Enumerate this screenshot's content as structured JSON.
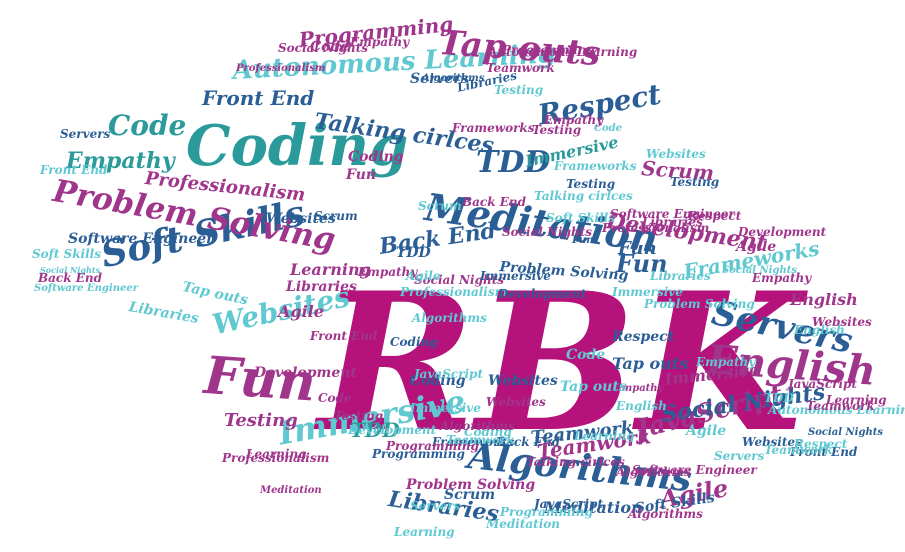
{
  "palette": {
    "magenta": "#b5127c",
    "purple": "#a0358c",
    "navy": "#2a5e95",
    "teal": "#2b9a9a",
    "cyan": "#5fc8d1",
    "lightcyan": "#8ad8de"
  },
  "words": [
    {
      "text": "RBK",
      "color": "magenta"
    },
    {
      "text": "Coding",
      "color": "teal"
    },
    {
      "text": "Soft Skills",
      "color": "navy"
    },
    {
      "text": "Meditation",
      "color": "navy"
    },
    {
      "text": "Fun",
      "color": "purple"
    },
    {
      "text": "Problem Solving",
      "color": "purple"
    },
    {
      "text": "Algorithms",
      "color": "navy"
    },
    {
      "text": "English",
      "color": "purple"
    },
    {
      "text": "Servers",
      "color": "navy"
    },
    {
      "text": "Autonomous Learning",
      "color": "cyan"
    },
    {
      "text": "Tap outs",
      "color": "purple"
    },
    {
      "text": "Immersive",
      "color": "cyan"
    },
    {
      "text": "Websites",
      "color": "cyan"
    },
    {
      "text": "Respect",
      "color": "navy"
    },
    {
      "text": "Code",
      "color": "teal"
    },
    {
      "text": "Empathy",
      "color": "teal"
    },
    {
      "text": "TDD",
      "color": "navy"
    },
    {
      "text": "Programming",
      "color": "purple"
    },
    {
      "text": "Front End",
      "color": "navy"
    },
    {
      "text": "Talking cirlces",
      "color": "navy"
    },
    {
      "text": "Development",
      "color": "purple"
    },
    {
      "text": "JavaScript",
      "color": "purple"
    },
    {
      "text": "Social Nights",
      "color": "navy"
    },
    {
      "text": "Professionalism",
      "color": "purple"
    },
    {
      "text": "Back End",
      "color": "navy"
    },
    {
      "text": "Fun",
      "color": "navy"
    },
    {
      "text": "Frameworks",
      "color": "cyan"
    },
    {
      "text": "Libraries",
      "color": "navy"
    },
    {
      "text": "Agile",
      "color": "purple"
    },
    {
      "text": "Scrum",
      "color": "purple"
    },
    {
      "text": "Teamwork",
      "color": "navy"
    },
    {
      "text": "Testing",
      "color": "purple"
    },
    {
      "text": "TDD",
      "color": "teal"
    },
    {
      "text": "Code",
      "color": "purple"
    },
    {
      "text": "Fun",
      "color": "purple"
    },
    {
      "text": "Coding",
      "color": "purple"
    },
    {
      "text": "Immersive",
      "color": "teal"
    },
    {
      "text": "Software Engineer",
      "color": "navy"
    },
    {
      "text": "Websites",
      "color": "navy"
    },
    {
      "text": "Scrum",
      "color": "navy"
    },
    {
      "text": "Learning",
      "color": "purple"
    },
    {
      "text": "Libraries",
      "color": "purple"
    },
    {
      "text": "Agile",
      "color": "purple"
    },
    {
      "text": "Empathy",
      "color": "purple"
    },
    {
      "text": "Social Nights",
      "color": "purple"
    },
    {
      "text": "Immersive",
      "color": "navy"
    },
    {
      "text": "Problem Solving",
      "color": "navy"
    },
    {
      "text": "Back End",
      "color": "purple"
    },
    {
      "text": "Code",
      "color": "cyan"
    },
    {
      "text": "Testing",
      "color": "navy"
    },
    {
      "text": "Respect",
      "color": "navy"
    },
    {
      "text": "Tap outs",
      "color": "navy"
    },
    {
      "text": "Coding",
      "color": "navy"
    },
    {
      "text": "Websites",
      "color": "navy"
    },
    {
      "text": "Frameworks",
      "color": "navy"
    },
    {
      "text": "Programming",
      "color": "navy"
    },
    {
      "text": "Back End",
      "color": "navy"
    },
    {
      "text": "Teamwork",
      "color": "purple"
    },
    {
      "text": "Learning",
      "color": "purple"
    },
    {
      "text": "Scrum",
      "color": "navy"
    },
    {
      "text": "Meditation",
      "color": "navy"
    },
    {
      "text": "Fun",
      "color": "navy"
    },
    {
      "text": "Development",
      "color": "purple"
    },
    {
      "text": "Front End",
      "color": "purple"
    },
    {
      "text": "Testing",
      "color": "purple"
    },
    {
      "text": "Servers",
      "color": "navy"
    },
    {
      "text": "Immersive",
      "color": "purple"
    },
    {
      "text": "Algorithms",
      "color": "navy"
    },
    {
      "text": "Empathy",
      "color": "purple"
    },
    {
      "text": "Soft Skills",
      "color": "navy"
    },
    {
      "text": "Websites",
      "color": "navy"
    },
    {
      "text": "Front End",
      "color": "navy"
    },
    {
      "text": "Social Nights",
      "color": "navy"
    },
    {
      "text": "Empathy",
      "color": "purple"
    },
    {
      "text": "Code",
      "color": "purple"
    },
    {
      "text": "Programming",
      "color": "purple"
    },
    {
      "text": "TDD",
      "color": "navy"
    },
    {
      "text": "Algorithms",
      "color": "purple"
    },
    {
      "text": "Websites",
      "color": "purple"
    },
    {
      "text": "Teamwork",
      "color": "purple"
    },
    {
      "text": "Libraries",
      "color": "navy"
    },
    {
      "text": "Testing",
      "color": "navy"
    },
    {
      "text": "Servers",
      "color": "navy"
    },
    {
      "text": "English",
      "color": "purple"
    },
    {
      "text": "Agile",
      "color": "purple"
    },
    {
      "text": "Respect",
      "color": "purple"
    },
    {
      "text": "Development",
      "color": "purple"
    },
    {
      "text": "Fun",
      "color": "navy"
    },
    {
      "text": "Coding",
      "color": "navy"
    },
    {
      "text": "Tap outs",
      "color": "cyan"
    },
    {
      "text": "Agile",
      "color": "cyan"
    },
    {
      "text": "English",
      "color": "cyan"
    },
    {
      "text": "Soft Skills",
      "color": "cyan"
    },
    {
      "text": "Software Engineer",
      "color": "cyan"
    },
    {
      "text": "Social Nights",
      "color": "cyan"
    },
    {
      "text": "Libraries",
      "color": "cyan"
    },
    {
      "text": "Servers",
      "color": "cyan"
    },
    {
      "text": "Websites",
      "color": "cyan"
    },
    {
      "text": "Teamwork",
      "color": "cyan"
    },
    {
      "text": "Meditation",
      "color": "cyan"
    },
    {
      "text": "Programming",
      "color": "cyan"
    },
    {
      "text": "Testing",
      "color": "cyan"
    },
    {
      "text": "TDD",
      "color": "cyan"
    },
    {
      "text": "Development",
      "color": "cyan"
    },
    {
      "text": "Scrum",
      "color": "cyan"
    },
    {
      "text": "Talking cirlces",
      "color": "cyan"
    },
    {
      "text": "Immersive",
      "color": "cyan"
    },
    {
      "text": "Libraries",
      "color": "cyan"
    },
    {
      "text": "Respect",
      "color": "cyan"
    },
    {
      "text": "English",
      "color": "cyan"
    },
    {
      "text": "Frameworks",
      "color": "cyan"
    },
    {
      "text": "Autonomous Learning",
      "color": "cyan"
    },
    {
      "text": "Professionalism",
      "color": "cyan"
    },
    {
      "text": "JavaScript",
      "color": "cyan"
    },
    {
      "text": "Code",
      "color": "cyan"
    },
    {
      "text": "Learning",
      "color": "cyan"
    },
    {
      "text": "Algorithms",
      "color": "cyan"
    },
    {
      "text": "Tap outs",
      "color": "cyan"
    },
    {
      "text": "Agile",
      "color": "cyan"
    },
    {
      "text": "Problem Solving",
      "color": "cyan"
    },
    {
      "text": "Coding",
      "color": "cyan"
    },
    {
      "text": "Empathy",
      "color": "cyan"
    },
    {
      "text": "Servers",
      "color": "cyan"
    },
    {
      "text": "Immersive",
      "color": "cyan"
    },
    {
      "text": "Teamwork",
      "color": "cyan"
    },
    {
      "text": "Front End",
      "color": "cyan"
    },
    {
      "text": "Social Nights",
      "color": "cyan"
    },
    {
      "text": "JavaScript",
      "color": "navy"
    },
    {
      "text": "Meditation",
      "color": "purple"
    },
    {
      "text": "Software Engineer",
      "color": "purple"
    },
    {
      "text": "Algorithms",
      "color": "purple"
    },
    {
      "text": "JavaScript",
      "color": "purple"
    },
    {
      "text": "Professionalism",
      "color": "purple"
    },
    {
      "text": "Autonomous Learning",
      "color": "purple"
    },
    {
      "text": "Teamwork",
      "color": "purple"
    },
    {
      "text": "Social Nights",
      "color": "purple"
    },
    {
      "text": "Websites",
      "color": "purple"
    },
    {
      "text": "Professionalism",
      "color": "purple"
    },
    {
      "text": "Development",
      "color": "navy"
    },
    {
      "text": "Empathy",
      "color": "purple"
    },
    {
      "text": "Programming",
      "color": "purple"
    },
    {
      "text": "Libraries",
      "color": "purple"
    },
    {
      "text": "Algorithms",
      "color": "purple"
    },
    {
      "text": "Testing",
      "color": "purple"
    },
    {
      "text": "Frameworks",
      "color": "purple"
    },
    {
      "text": "Talking cirlces",
      "color": "purple"
    },
    {
      "text": "Problem Solving",
      "color": "purple"
    },
    {
      "text": "Learning",
      "color": "purple"
    },
    {
      "text": "Empathy",
      "color": "purple"
    },
    {
      "text": "Social Nights",
      "color": "purple"
    },
    {
      "text": "Professionalism",
      "color": "purple"
    },
    {
      "text": "Back End",
      "color": "purple"
    },
    {
      "text": "Learning",
      "color": "cyan"
    },
    {
      "text": "Soft Skills",
      "color": "cyan"
    },
    {
      "text": "Software Engineer",
      "color": "purple"
    },
    {
      "text": "Development",
      "color": "cyan"
    },
    {
      "text": "Immersive",
      "color": "purple"
    }
  ]
}
